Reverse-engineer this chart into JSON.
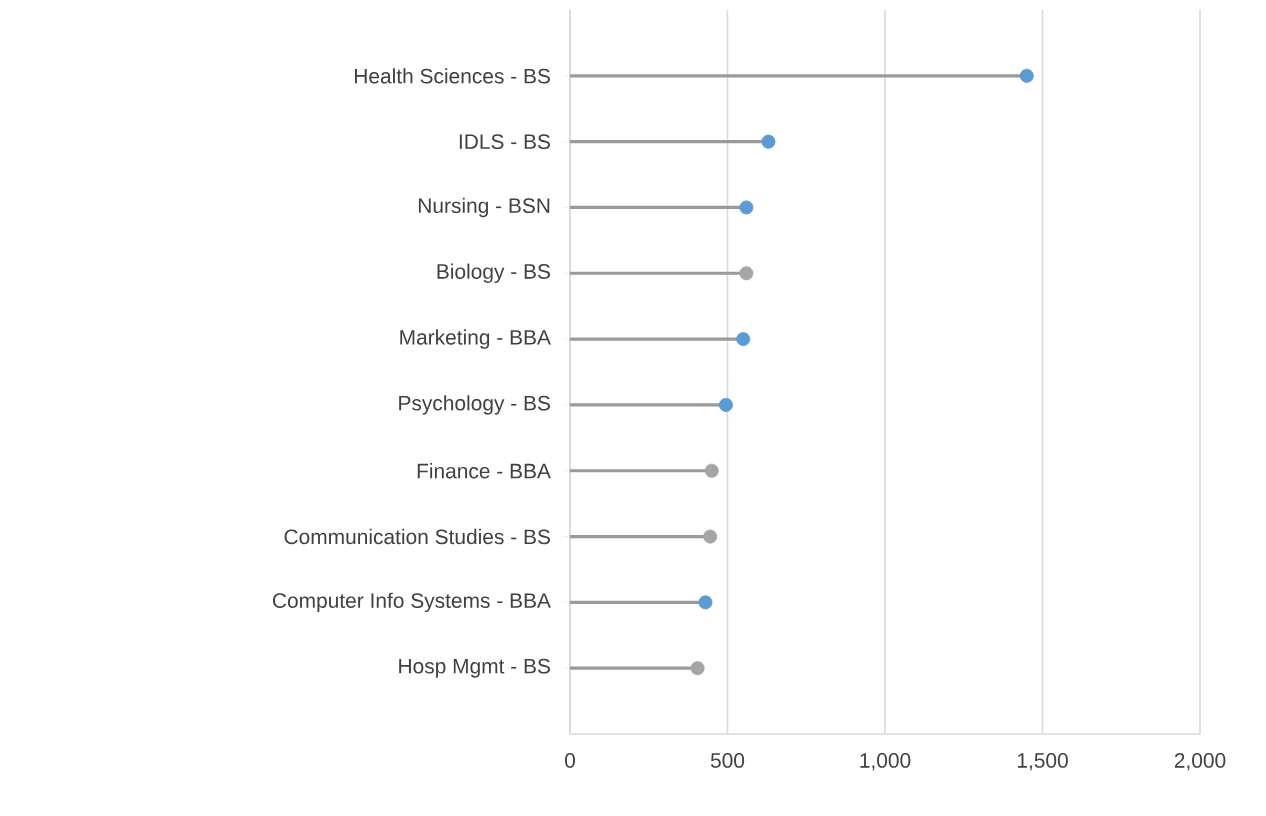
{
  "chart_data": {
    "type": "lollipop",
    "orientation": "horizontal",
    "categories": [
      "Health Sciences - BS",
      "IDLS - BS",
      "Nursing - BSN",
      "Biology - BS",
      "Marketing - BBA",
      "Psychology - BS",
      "Finance - BBA",
      "Communication Studies - BS",
      "Computer Info Systems - BBA",
      "Hosp Mgmt - BS"
    ],
    "series": [
      {
        "color": "#9a9a9a",
        "values": [
          1450,
          630,
          560,
          560,
          550,
          495,
          450,
          445,
          430,
          405
        ],
        "colors": [
          "#5b9bd5",
          "#5b9bd5",
          "#5b9bd5",
          "#a5a5a5",
          "#5b9bd5",
          "#5b9bd5",
          "#a5a5a5",
          "#a5a5a5",
          "#5b9bd5",
          "#a5a5a5"
        ]
      }
    ],
    "xlim": [
      0,
      2000
    ],
    "xticks": [
      0,
      500,
      {
        "value": 1000,
        "label": "1,000"
      },
      {
        "value": 1500,
        "label": "1,500"
      },
      {
        "value": 2000,
        "label": "2,000"
      }
    ],
    "grid": "x",
    "marker": "circle"
  }
}
